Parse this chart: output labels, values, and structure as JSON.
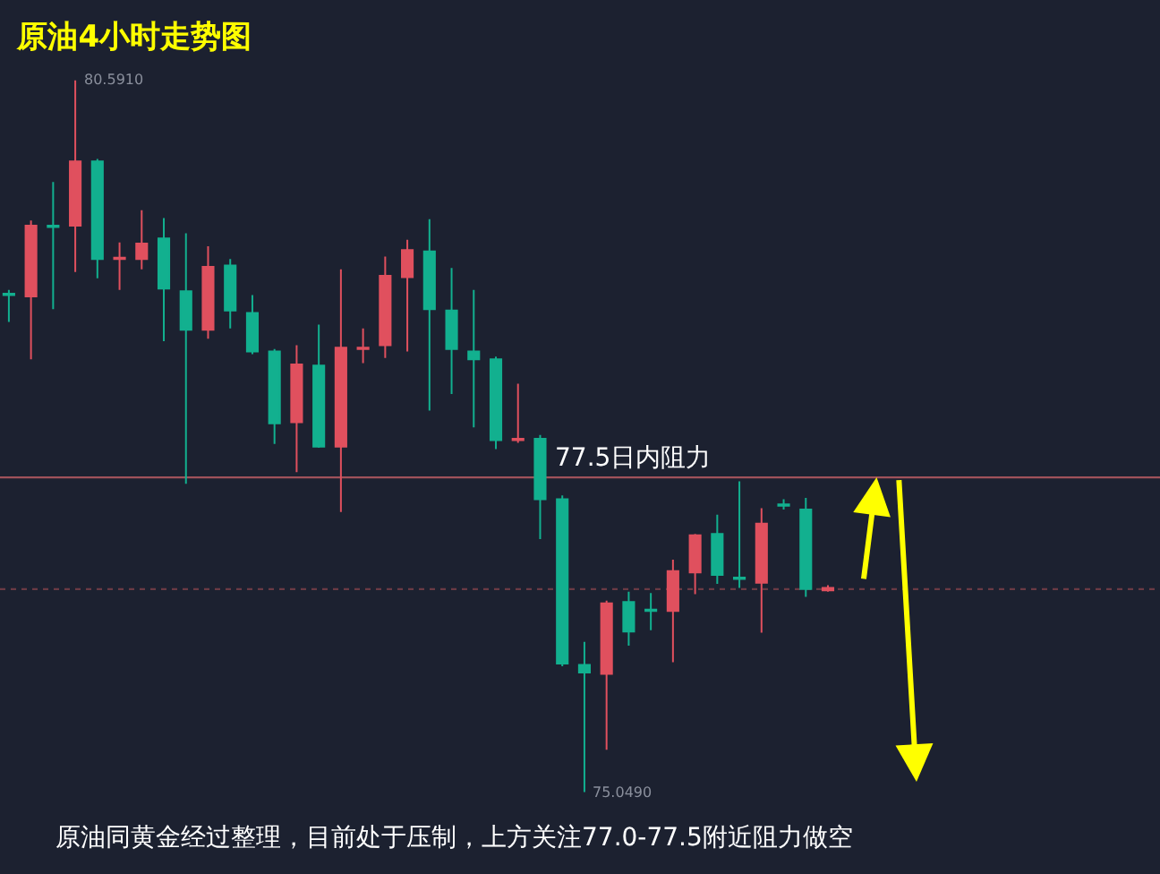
{
  "chart_data": {
    "type": "candlestick",
    "title": "原油4小时走势图",
    "categories": [
      null,
      null,
      null,
      null,
      null,
      null,
      null,
      null,
      null,
      null,
      null,
      null,
      null,
      null,
      null,
      null,
      null,
      null,
      null,
      null,
      null,
      null,
      null,
      null,
      null,
      null,
      null,
      null,
      null,
      null,
      null,
      null,
      null,
      null,
      null,
      null,
      null,
      null
    ],
    "ohlc": [
      [
        78.93,
        78.96,
        78.71,
        78.92
      ],
      [
        78.91,
        79.5,
        78.42,
        79.46
      ],
      [
        79.46,
        79.8,
        78.81,
        79.45
      ],
      [
        79.46,
        80.591,
        79.1,
        79.96
      ],
      [
        79.96,
        79.98,
        79.05,
        79.2
      ],
      [
        79.2,
        79.33,
        78.96,
        79.21
      ],
      [
        79.2,
        79.58,
        79.12,
        79.32
      ],
      [
        79.36,
        79.52,
        78.56,
        78.97
      ],
      [
        78.95,
        79.4,
        77.45,
        78.65
      ],
      [
        78.65,
        79.3,
        78.58,
        79.14
      ],
      [
        79.15,
        79.2,
        78.66,
        78.8
      ],
      [
        78.78,
        78.92,
        78.46,
        78.48
      ],
      [
        78.48,
        78.5,
        77.76,
        77.92
      ],
      [
        77.93,
        78.53,
        77.54,
        78.38
      ],
      [
        78.37,
        78.69,
        77.73,
        77.74
      ],
      [
        77.74,
        79.12,
        77.23,
        78.51
      ],
      [
        78.5,
        78.66,
        78.39,
        78.51
      ],
      [
        78.53,
        79.22,
        78.43,
        79.07
      ],
      [
        79.06,
        79.35,
        78.48,
        79.27
      ],
      [
        79.26,
        79.51,
        78.02,
        78.81
      ],
      [
        78.8,
        79.13,
        78.15,
        78.5
      ],
      [
        78.48,
        78.96,
        77.89,
        78.42
      ],
      [
        78.42,
        78.44,
        77.72,
        77.79
      ],
      [
        77.79,
        78.23,
        77.77,
        77.8
      ],
      [
        77.8,
        77.83,
        77.02,
        77.33
      ],
      [
        77.33,
        77.36,
        76.03,
        76.05
      ],
      [
        76.04,
        76.22,
        75.049,
        75.98
      ],
      [
        75.97,
        76.54,
        75.38,
        76.52
      ],
      [
        76.53,
        76.61,
        76.19,
        76.3
      ],
      [
        76.47,
        76.6,
        76.31,
        76.46
      ],
      [
        76.46,
        76.86,
        76.06,
        76.77
      ],
      [
        76.76,
        77.06,
        76.59,
        77.05
      ],
      [
        77.06,
        77.21,
        76.67,
        76.74
      ],
      [
        76.72,
        77.47,
        76.64,
        76.71
      ],
      [
        76.68,
        77.26,
        76.29,
        77.14
      ],
      [
        77.29,
        77.33,
        77.25,
        77.28
      ],
      [
        77.25,
        77.34,
        76.57,
        76.63
      ],
      [
        76.62,
        76.66,
        76.61,
        76.64
      ]
    ],
    "colors": [
      "#12b08f",
      "#e0505e",
      "#12b08f",
      "#e0505e",
      "#12b08f",
      "#e0505e",
      "#e0505e",
      "#12b08f",
      "#12b08f",
      "#e0505e",
      "#12b08f",
      "#12b08f",
      "#12b08f",
      "#e0505e",
      "#12b08f",
      "#e0505e",
      "#e0505e",
      "#e0505e",
      "#e0505e",
      "#12b08f",
      "#12b08f",
      "#12b08f",
      "#12b08f",
      "#e0505e",
      "#12b08f",
      "#12b08f",
      "#12b08f",
      "#e0505e",
      "#12b08f",
      "#12b08f",
      "#e0505e",
      "#e0505e",
      "#12b08f",
      "#12b08f",
      "#e0505e",
      "#12b08f",
      "#12b08f",
      "#e0505e"
    ],
    "ref_lines": [
      {
        "axis": "y",
        "value": 77.5,
        "label": "77.5日内阻力",
        "color": "#a0525a",
        "line_style": "solid"
      },
      {
        "axis": "y",
        "value": 76.63,
        "color": "#6a3a44",
        "line_style": "dotted"
      }
    ],
    "annotations": [
      "80.5910",
      "75.0490",
      "原油同黄金经过整理，目前处于压制，上方关注77.0-77.5附近阻力做空"
    ],
    "grid": false
  }
}
